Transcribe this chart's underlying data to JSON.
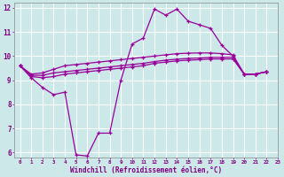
{
  "background_color": "#cce8e8",
  "grid_color": "#ffffff",
  "line_color": "#990099",
  "xlabel": "Windchill (Refroidissement éolien,°C)",
  "ylim": [
    6,
    12
  ],
  "xlim": [
    0,
    23
  ],
  "yticks": [
    6,
    7,
    8,
    9,
    10,
    11,
    12
  ],
  "xticks": [
    0,
    1,
    2,
    3,
    4,
    5,
    6,
    7,
    8,
    9,
    10,
    11,
    12,
    13,
    14,
    15,
    16,
    17,
    18,
    19,
    20,
    21,
    22,
    23
  ],
  "windchill_y": [
    9.6,
    9.1,
    8.7,
    8.4,
    8.5,
    5.9,
    5.85,
    6.8,
    6.8,
    9.0,
    10.5,
    10.75,
    11.95,
    11.7,
    11.95,
    11.45,
    11.3,
    11.15,
    10.45,
    10.0,
    9.25,
    9.25,
    9.35
  ],
  "line2_y": [
    9.6,
    9.15,
    9.1,
    9.15,
    9.25,
    9.3,
    9.35,
    9.4,
    9.45,
    9.5,
    9.55,
    9.6,
    9.7,
    9.75,
    9.8,
    9.83,
    9.85,
    9.88,
    9.88,
    9.88,
    9.25,
    9.25,
    9.35
  ],
  "line3_y": [
    9.6,
    9.2,
    9.2,
    9.3,
    9.35,
    9.4,
    9.45,
    9.5,
    9.55,
    9.6,
    9.65,
    9.7,
    9.77,
    9.83,
    9.87,
    9.9,
    9.92,
    9.95,
    9.95,
    9.95,
    9.25,
    9.25,
    9.35
  ],
  "line4_y": [
    9.6,
    9.25,
    9.3,
    9.45,
    9.6,
    9.65,
    9.7,
    9.75,
    9.8,
    9.85,
    9.9,
    9.95,
    10.0,
    10.05,
    10.1,
    10.12,
    10.13,
    10.13,
    10.1,
    10.05,
    9.25,
    9.25,
    9.35
  ]
}
